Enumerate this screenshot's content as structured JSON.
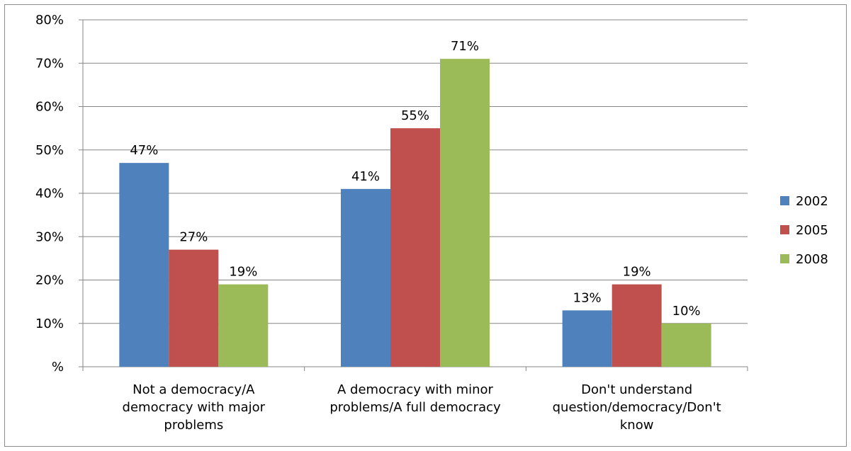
{
  "chart_data": {
    "type": "bar",
    "categories": [
      [
        "Not a democracy/A",
        "democracy with major",
        "problems"
      ],
      [
        "A democracy with minor",
        "problems/A full democracy"
      ],
      [
        "Don't understand",
        "question/democracy/Don't",
        "know"
      ]
    ],
    "series": [
      {
        "name": "2002",
        "color": "#4f81bd",
        "values": [
          47,
          41,
          13
        ],
        "labels": [
          "47%",
          "41%",
          "13%"
        ]
      },
      {
        "name": "2005",
        "color": "#c0504d",
        "values": [
          27,
          55,
          19
        ],
        "labels": [
          "27%",
          "55%",
          "19%"
        ]
      },
      {
        "name": "2008",
        "color": "#9bbb59",
        "values": [
          19,
          71,
          10
        ],
        "labels": [
          "19%",
          "71%",
          "10%"
        ]
      }
    ],
    "ylim": [
      0,
      80
    ],
    "yticks": [
      {
        "v": 80,
        "label": "80%"
      },
      {
        "v": 70,
        "label": "70%"
      },
      {
        "v": 60,
        "label": "60%"
      },
      {
        "v": 50,
        "label": "50%"
      },
      {
        "v": 40,
        "label": "40%"
      },
      {
        "v": 30,
        "label": "30%"
      },
      {
        "v": 20,
        "label": "20%"
      },
      {
        "v": 10,
        "label": "10%"
      },
      {
        "v": 0,
        "label": "%"
      }
    ],
    "grid": true,
    "legend_position": "right"
  }
}
